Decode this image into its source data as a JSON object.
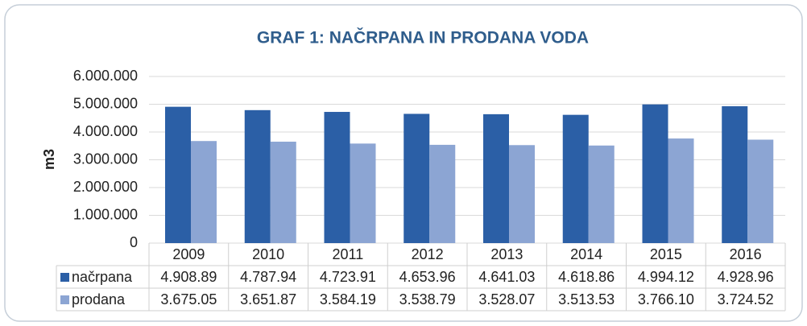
{
  "chart_data": {
    "type": "bar",
    "title": "GRAF 1: NAČRPANA IN PRODANA VODA",
    "y_label": "m3",
    "categories": [
      "2009",
      "2010",
      "2011",
      "2012",
      "2013",
      "2014",
      "2015",
      "2016"
    ],
    "series": [
      {
        "name": "načrpana",
        "color": "#2b5fa6",
        "values": [
          4908890,
          4787940,
          4723910,
          4653960,
          4641030,
          4618860,
          4994120,
          4928960
        ],
        "value_labels": [
          "4.908.89",
          "4.787.94",
          "4.723.91",
          "4.653.96",
          "4.641.03",
          "4.618.86",
          "4.994.12",
          "4.928.96"
        ]
      },
      {
        "name": "prodana",
        "color": "#8ca5d3",
        "values": [
          3675050,
          3651870,
          3584190,
          3538790,
          3528070,
          3513530,
          3766100,
          3724520
        ],
        "value_labels": [
          "3.675.05",
          "3.651.87",
          "3.584.19",
          "3.538.79",
          "3.528.07",
          "3.513.53",
          "3.766.10",
          "3.724.52"
        ]
      }
    ],
    "ylim": [
      0,
      6000000
    ],
    "yticks": [
      0,
      {
        "value": 1000000,
        "label": "1.000.000"
      },
      {
        "value": 2000000,
        "label": "2.000.000"
      },
      {
        "value": 3000000,
        "label": "3.000.000"
      },
      {
        "value": 4000000,
        "label": "4.000.000"
      },
      {
        "value": 5000000,
        "label": "5.000.000"
      },
      {
        "value": 6000000,
        "label": "6.000.000"
      }
    ],
    "grid": true
  }
}
